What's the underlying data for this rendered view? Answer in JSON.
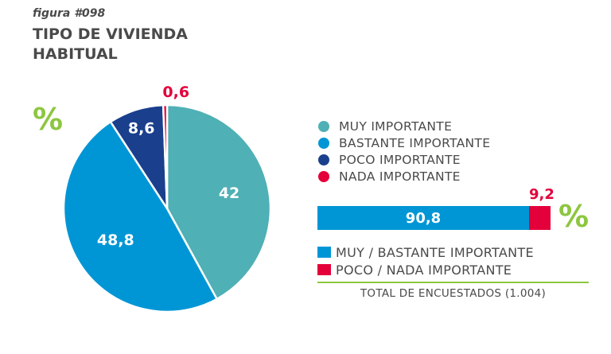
{
  "figure_number": "figura #098",
  "title": "TIPO DE VIVIENDA HABITUAL",
  "percent_symbol": "%",
  "chart_data": [
    {
      "type": "pie",
      "title": "TIPO DE VIVIENDA HABITUAL",
      "unit": "%",
      "start": "top",
      "direction": "clockwise",
      "categories": [
        "MUY IMPORTANTE",
        "BASTANTE IMPORTANTE",
        "POCO IMPORTANTE",
        "NADA IMPORTANTE"
      ],
      "values": [
        42,
        48.8,
        8.6,
        0.6
      ],
      "labels": [
        "42",
        "48,8",
        "8,6",
        "0,6"
      ],
      "colors": [
        "#4fb0b5",
        "#0096d6",
        "#1a3f8c",
        "#e4003a"
      ],
      "legend": "right"
    },
    {
      "type": "bar",
      "orientation": "horizontal",
      "stacked": true,
      "unit": "%",
      "categories": [
        "MUY / BASTANTE IMPORTANTE",
        "POCO / NADA IMPORTANTE"
      ],
      "values": [
        90.8,
        9.2
      ],
      "labels": [
        "90,8",
        "9,2"
      ],
      "colors": [
        "#0096d6",
        "#e4003a"
      ]
    }
  ],
  "legend": {
    "items": [
      {
        "label": "MUY IMPORTANTE",
        "color": "#4fb0b5"
      },
      {
        "label": "BASTANTE IMPORTANTE",
        "color": "#0096d6"
      },
      {
        "label": "POCO IMPORTANTE",
        "color": "#1a3f8c"
      },
      {
        "label": "NADA IMPORTANTE",
        "color": "#e4003a"
      }
    ]
  },
  "bar_legend": {
    "items": [
      {
        "label": "MUY / BASTANTE IMPORTANTE",
        "color": "#0096d6"
      },
      {
        "label": "POCO / NADA IMPORTANTE",
        "color": "#e4003a"
      }
    ]
  },
  "total_label": "TOTAL DE ENCUESTADOS (1.004)",
  "accent_color": "#8dc63f"
}
